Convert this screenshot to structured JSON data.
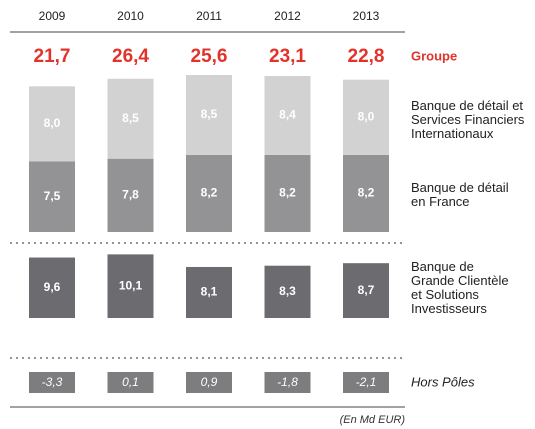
{
  "chart_data": {
    "type": "bar",
    "stacked": true,
    "categories": [
      "2009",
      "2010",
      "2011",
      "2012",
      "2013"
    ],
    "totals": {
      "name": "Groupe",
      "color": "#e2332b",
      "values": [
        21.7,
        26.4,
        25.6,
        23.1,
        22.8
      ],
      "value_labels": [
        "21,7",
        "26,4",
        "25,6",
        "23,1",
        "22,8"
      ]
    },
    "series": [
      {
        "name": "Banque de détail\nen France",
        "color": "#939395",
        "values": [
          7.5,
          7.8,
          8.2,
          8.2,
          8.2
        ],
        "value_labels": [
          "7,5",
          "7,8",
          "8,2",
          "8,2",
          "8,2"
        ]
      },
      {
        "name": "Banque de détail et\nServices Financiers\nInternationaux",
        "color": "#d2d2d3",
        "values": [
          8.0,
          8.5,
          8.5,
          8.4,
          8.0
        ],
        "value_labels": [
          "8,0",
          "8,5",
          "8,5",
          "8,4",
          "8,0"
        ]
      },
      {
        "name": "Banque de\nGrande Clientèle\net Solutions\nInvestisseurs",
        "color": "#6c6b70",
        "values": [
          9.6,
          10.1,
          8.1,
          8.3,
          8.7
        ],
        "value_labels": [
          "9,6",
          "10,1",
          "8,1",
          "8,3",
          "8,7"
        ]
      },
      {
        "name": "Hors Pôles",
        "color": "#7d7d80",
        "values": [
          -3.3,
          0.1,
          0.9,
          -1.8,
          -2.1
        ],
        "value_labels": [
          "-3,3",
          "0,1",
          "0,9",
          "-1,8",
          "-2,1"
        ]
      }
    ],
    "note": "(En Md EUR)"
  }
}
